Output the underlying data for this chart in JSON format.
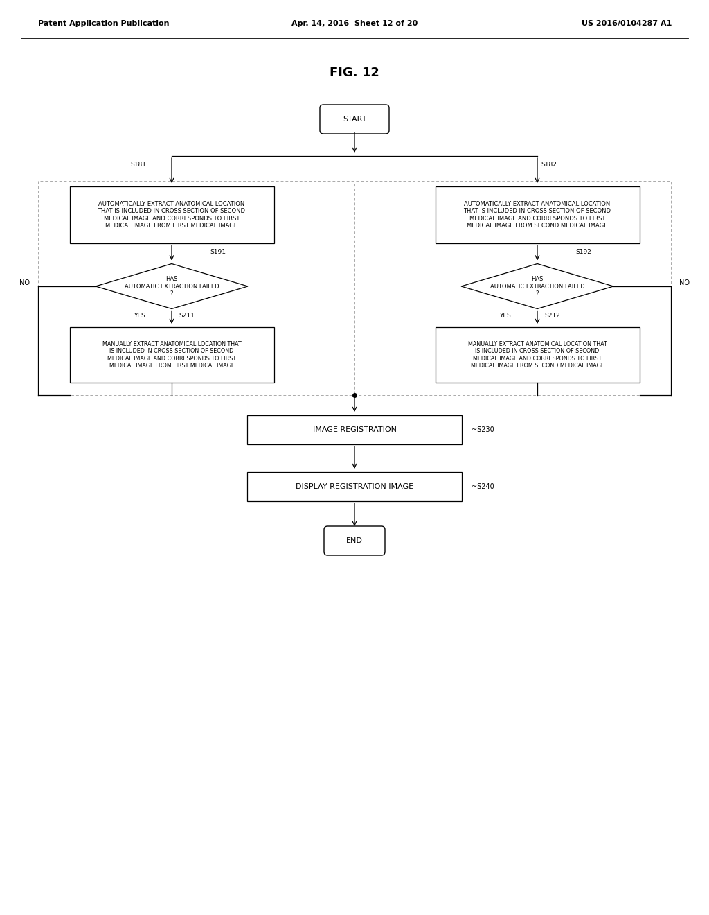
{
  "background_color": "#ffffff",
  "header_left": "Patent Application Publication",
  "header_mid": "Apr. 14, 2016  Sheet 12 of 20",
  "header_right": "US 2016/0104287 A1",
  "fig_label": "FIG. 12",
  "start_label": "START",
  "end_label": "END",
  "box_s181_label": "S181",
  "box_s182_label": "S182",
  "box_s181_text": "AUTOMATICALLY EXTRACT ANATOMICAL LOCATION\nTHAT IS INCLUDED IN CROSS SECTION OF SECOND\nMEDICAL IMAGE AND CORRESPONDS TO FIRST\nMEDICAL IMAGE FROM FIRST MEDICAL IMAGE",
  "box_s182_text": "AUTOMATICALLY EXTRACT ANATOMICAL LOCATION\nTHAT IS INCLUDED IN CROSS SECTION OF SECOND\nMEDICAL IMAGE AND CORRESPONDS TO FIRST\nMEDICAL IMAGE FROM SECOND MEDICAL IMAGE",
  "diamond_s191_label": "S191",
  "diamond_s191_text": "HAS\nAUTOMATIC EXTRACTION FAILED\n?",
  "diamond_s192_label": "S192",
  "diamond_s192_text": "HAS\nAUTOMATIC EXTRACTION FAILED\n?",
  "box_s211_label": "S211",
  "box_s211_text": "MANUALLY EXTRACT ANATOMICAL LOCATION THAT\nIS INCLUDED IN CROSS SECTION OF SECOND\nMEDICAL IMAGE AND CORRESPONDS TO FIRST\nMEDICAL IMAGE FROM FIRST MEDICAL IMAGE",
  "box_s212_label": "S212",
  "box_s212_text": "MANUALLY EXTRACT ANATOMICAL LOCATION THAT\nIS INCLUDED IN CROSS SECTION OF SECOND\nMEDICAL IMAGE AND CORRESPONDS TO FIRST\nMEDICAL IMAGE FROM SECOND MEDICAL IMAGE",
  "box_s230_text": "IMAGE REGISTRATION",
  "box_s230_label": "~S230",
  "box_s240_text": "DISPLAY REGISTRATION IMAGE",
  "box_s240_label": "~S240",
  "no_label": "NO",
  "yes_label": "YES",
  "line_color": "#000000",
  "text_color": "#000000",
  "box_fill": "#ffffff",
  "box_edge": "#000000",
  "dash_color": "#aaaaaa"
}
